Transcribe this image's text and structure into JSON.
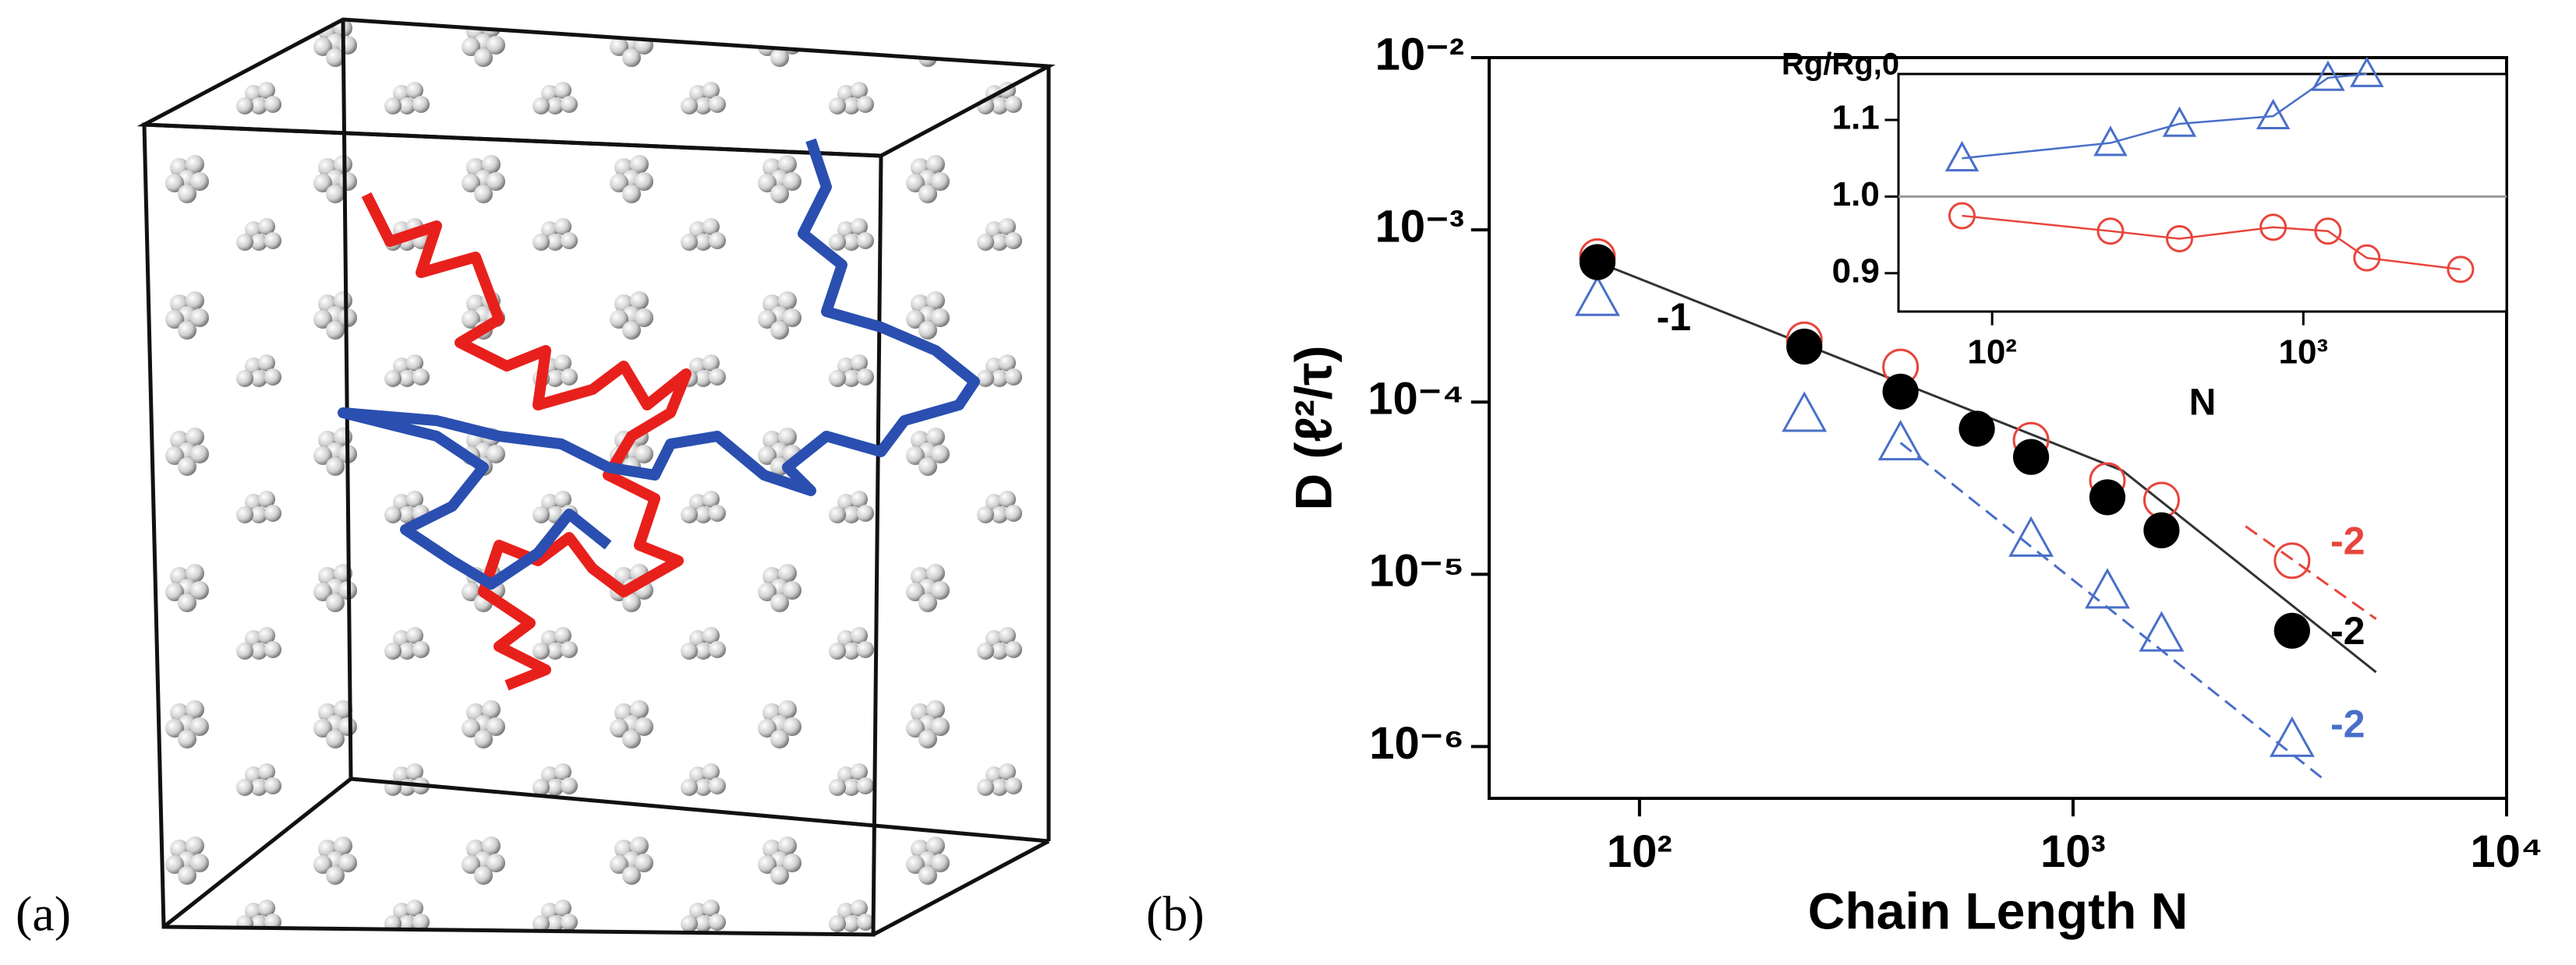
{
  "panel_labels": [
    "(a)",
    "(b)"
  ],
  "chart_data": [
    {
      "type": "scatter-line",
      "xlabel": "Chain Length N",
      "ylabel": "D (ℓ²/τ)",
      "xlog": true,
      "ylog": true,
      "xlim": [
        45,
        10000
      ],
      "ylim": [
        5e-07,
        0.01
      ],
      "xticks": [
        {
          "value": 100,
          "label": "10²"
        },
        {
          "value": 1000,
          "label": "10³"
        },
        {
          "value": 10000,
          "label": "10⁴"
        }
      ],
      "yticks": [
        {
          "value": 1e-06,
          "label": "10⁻⁶"
        },
        {
          "value": 1e-05,
          "label": "10⁻⁵"
        },
        {
          "value": 0.0001,
          "label": "10⁻⁴"
        },
        {
          "value": 0.001,
          "label": "10⁻³"
        },
        {
          "value": 0.01,
          "label": "10⁻²"
        }
      ],
      "series": [
        {
          "mark": "line",
          "dash": false,
          "color": "#333333",
          "x": [
            80,
            1300,
            5000
          ],
          "values": [
            0.00065,
            4e-05,
            2.7e-06
          ]
        },
        {
          "mark": "line",
          "dash": true,
          "color": "#e8453c",
          "x": [
            2500,
            5000
          ],
          "values": [
            1.9e-05,
            5.5e-06
          ]
        },
        {
          "mark": "line",
          "dash": true,
          "color": "#4a6fc9",
          "x": [
            400,
            3800
          ],
          "values": [
            5.8e-05,
            6.4e-07
          ]
        },
        {
          "mark": "open-circle",
          "color": "#e8453c",
          "x": [
            80,
            240,
            400,
            800,
            1200,
            1600,
            3200
          ],
          "values": [
            0.0007,
            0.00023,
            0.00016,
            6e-05,
            3.5e-05,
            2.7e-05,
            1.2e-05
          ]
        },
        {
          "mark": "triangle",
          "color": "#4a6fc9",
          "x": [
            80,
            240,
            400,
            800,
            1200,
            1600,
            3200
          ],
          "values": [
            0.0004,
            8.5e-05,
            5.8e-05,
            1.6e-05,
            8e-06,
            4.5e-06,
            1.1e-06
          ]
        },
        {
          "mark": "filled-circle",
          "color": "#000000",
          "x": [
            80,
            240,
            400,
            600,
            800,
            1200,
            1600,
            3200
          ],
          "values": [
            0.00065,
            0.00021,
            0.000115,
            7e-05,
            4.8e-05,
            2.8e-05,
            1.8e-05,
            4.7e-06
          ]
        }
      ],
      "annotations": [
        {
          "text": "-1",
          "x": 120,
          "y": 0.0003,
          "color": "#000000"
        },
        {
          "text": "-2",
          "x": 4300,
          "y": 1.5e-05,
          "color": "#e8453c"
        },
        {
          "text": "-2",
          "x": 4300,
          "y": 4.5e-06,
          "color": "#000000"
        },
        {
          "text": "-2",
          "x": 4300,
          "y": 1.3e-06,
          "color": "#4a6fc9"
        }
      ]
    },
    {
      "type": "line",
      "xlabel": "N",
      "ylabel": "Rg/Rg,0",
      "xlog": true,
      "ylog": false,
      "xlim": [
        50,
        4500
      ],
      "ylim": [
        0.85,
        1.16
      ],
      "xticks": [
        {
          "value": 100,
          "label": "10²"
        },
        {
          "value": 1000,
          "label": "10³"
        }
      ],
      "yticks": [
        0.9,
        {
          "value": 1.0,
          "label": "1.0"
        },
        1.1
      ],
      "reference_line": 1.0,
      "series": [
        {
          "mark": "triangle",
          "color": "#4a6fc9",
          "x": [
            80,
            240,
            400,
            800,
            1200,
            1600
          ],
          "values": [
            1.05,
            1.07,
            1.095,
            1.105,
            1.155,
            1.16
          ]
        },
        {
          "mark": "open-circle",
          "color": "#e8453c",
          "x": [
            80,
            240,
            400,
            800,
            1200,
            1600,
            3200
          ],
          "values": [
            0.975,
            0.955,
            0.945,
            0.96,
            0.955,
            0.92,
            0.905
          ]
        }
      ]
    }
  ]
}
